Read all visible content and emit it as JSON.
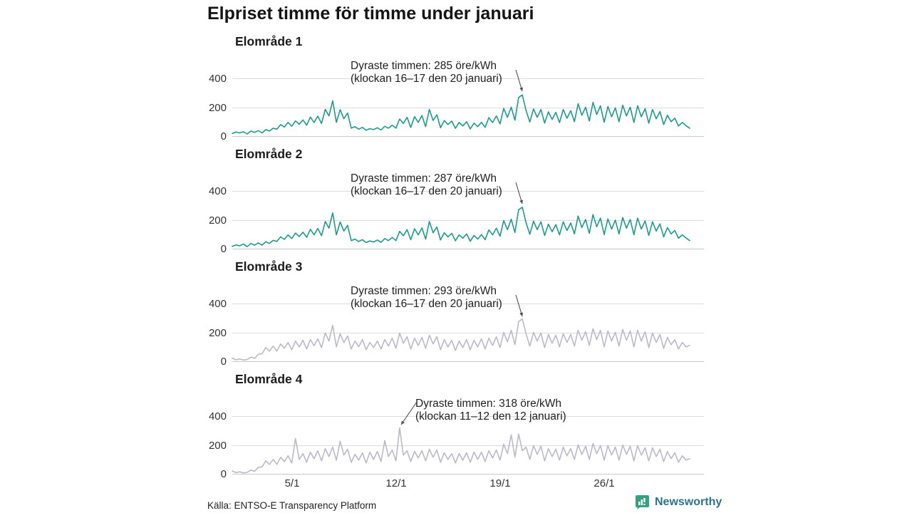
{
  "title": "Elpriset timme för timme under januari",
  "source": "Källa: ENTSO-E Transparency Platform",
  "branding": {
    "name": "Newsworthy",
    "icon_color": "#35a17f",
    "text_color": "#2e7389"
  },
  "colors": {
    "teal_line": "#1d9a8c",
    "gray_line": "#b9bac6",
    "grid": "#dcdcdc",
    "arrow": "#4d4d4d"
  },
  "chart_data": {
    "type": "line",
    "title": "Elpriset timme för timme under januari",
    "unit": "öre/kWh",
    "xlabel": "",
    "ylabel": "öre/kWh",
    "ylim": [
      0,
      460
    ],
    "y_tick_labels": [
      "400",
      "200",
      "0"
    ],
    "y_ticks": [
      400,
      200,
      0
    ],
    "x_tick_labels": [
      "5/1",
      "12/1",
      "19/1",
      "26/1"
    ],
    "x_tick_days": [
      5,
      12,
      19,
      26
    ],
    "days": 31,
    "samples_per_day": 4,
    "grid": true,
    "legend_position": "none",
    "charts": [
      {
        "title": "Elområde 1",
        "line_color": "#1d9a8c",
        "annotation": {
          "line1": "Dyraste timmen: 285 öre/kWh",
          "line2": "(klockan 16–17 den 20 januari)",
          "peak_value": 285,
          "peak_time": "klockan 16–17 den 20 januari",
          "arrow": "down-right"
        },
        "values": [
          18,
          28,
          22,
          30,
          15,
          35,
          25,
          38,
          22,
          45,
          35,
          55,
          48,
          80,
          62,
          95,
          68,
          105,
          82,
          112,
          75,
          132,
          95,
          138,
          88,
          185,
          140,
          245,
          95,
          183,
          120,
          160,
          55,
          65,
          48,
          60,
          40,
          52,
          45,
          58,
          42,
          68,
          55,
          75,
          55,
          118,
          88,
          130,
          60,
          135,
          95,
          142,
          65,
          185,
          108,
          148,
          58,
          108,
          80,
          104,
          54,
          95,
          70,
          100,
          50,
          90,
          65,
          96,
          60,
          128,
          94,
          140,
          85,
          192,
          130,
          200,
          110,
          268,
          285,
          178,
          98,
          188,
          130,
          184,
          90,
          168,
          115,
          165,
          94,
          184,
          124,
          176,
          100,
          224,
          144,
          200,
          104,
          234,
          150,
          210,
          96,
          205,
          134,
          196,
          100,
          214,
          140,
          200,
          95,
          210,
          134,
          190,
          90,
          184,
          120,
          170,
          80,
          144,
          100,
          124,
          70,
          95,
          72,
          55
        ]
      },
      {
        "title": "Elområde 2",
        "line_color": "#1d9a8c",
        "annotation": {
          "line1": "Dyraste timmen: 287 öre/kWh",
          "line2": "(klockan 16–17 den 20 januari)",
          "peak_value": 287,
          "peak_time": "klockan 16–17 den 20 januari",
          "arrow": "down-right"
        },
        "values": [
          16,
          26,
          20,
          32,
          14,
          36,
          24,
          40,
          24,
          48,
          36,
          58,
          50,
          82,
          64,
          96,
          70,
          108,
          84,
          114,
          78,
          134,
          96,
          140,
          90,
          188,
          142,
          248,
          96,
          185,
          122,
          162,
          56,
          66,
          50,
          62,
          42,
          54,
          46,
          60,
          44,
          70,
          56,
          78,
          56,
          120,
          90,
          132,
          62,
          138,
          96,
          144,
          66,
          188,
          110,
          150,
          60,
          110,
          82,
          106,
          55,
          96,
          72,
          102,
          52,
          92,
          66,
          98,
          62,
          130,
          96,
          142,
          86,
          195,
          132,
          204,
          112,
          270,
          287,
          180,
          100,
          190,
          132,
          186,
          92,
          170,
          117,
          167,
          96,
          186,
          126,
          178,
          102,
          226,
          146,
          202,
          106,
          236,
          152,
          212,
          98,
          207,
          136,
          198,
          102,
          216,
          142,
          202,
          97,
          212,
          136,
          192,
          92,
          186,
          122,
          172,
          82,
          146,
          102,
          126,
          72,
          96,
          74,
          56
        ]
      },
      {
        "title": "Elområde 3",
        "line_color": "#b9bac6",
        "annotation": {
          "line1": "Dyraste timmen: 293 öre/kWh",
          "line2": "(klockan 16–17 den 20 januari)",
          "peak_value": 293,
          "peak_time": "klockan 16–17 den 20 januari",
          "arrow": "down-right"
        },
        "values": [
          22,
          10,
          16,
          8,
          12,
          28,
          20,
          48,
          52,
          95,
          70,
          105,
          70,
          120,
          90,
          130,
          80,
          140,
          100,
          145,
          85,
          150,
          108,
          155,
          95,
          195,
          140,
          250,
          100,
          190,
          130,
          175,
          85,
          140,
          100,
          150,
          80,
          130,
          95,
          140,
          85,
          150,
          105,
          160,
          90,
          195,
          125,
          170,
          85,
          160,
          110,
          165,
          90,
          180,
          120,
          170,
          80,
          150,
          100,
          145,
          75,
          140,
          95,
          150,
          80,
          145,
          100,
          155,
          85,
          160,
          110,
          170,
          95,
          200,
          135,
          215,
          115,
          275,
          293,
          190,
          105,
          200,
          140,
          195,
          95,
          185,
          125,
          180,
          100,
          190,
          130,
          185,
          105,
          215,
          145,
          205,
          110,
          225,
          150,
          215,
          100,
          210,
          140,
          200,
          105,
          220,
          145,
          210,
          100,
          215,
          140,
          205,
          95,
          195,
          130,
          185,
          90,
          165,
          115,
          150,
          85,
          130,
          100,
          110
        ]
      },
      {
        "title": "Elområde 4",
        "line_color": "#b9bac6",
        "annotation": {
          "line1": "Dyraste timmen: 318 öre/kWh",
          "line2": "(klockan 11–12 den 12 januari)",
          "peak_value": 318,
          "peak_time": "klockan 11–12 den 12 januari",
          "arrow": "down-left"
        },
        "values": [
          20,
          8,
          14,
          6,
          10,
          26,
          18,
          45,
          48,
          90,
          65,
          100,
          65,
          115,
          85,
          125,
          75,
          245,
          100,
          140,
          80,
          150,
          105,
          160,
          90,
          175,
          120,
          185,
          95,
          225,
          130,
          170,
          80,
          135,
          95,
          145,
          75,
          150,
          100,
          155,
          85,
          230,
          120,
          165,
          90,
          318,
          130,
          160,
          85,
          155,
          110,
          160,
          90,
          170,
          115,
          165,
          80,
          145,
          100,
          140,
          75,
          140,
          95,
          145,
          80,
          150,
          100,
          150,
          85,
          160,
          110,
          165,
          95,
          205,
          140,
          270,
          115,
          275,
          160,
          185,
          100,
          195,
          135,
          190,
          90,
          175,
          120,
          170,
          95,
          185,
          125,
          175,
          100,
          200,
          135,
          190,
          100,
          210,
          140,
          195,
          95,
          195,
          130,
          185,
          95,
          200,
          135,
          190,
          90,
          195,
          130,
          180,
          90,
          180,
          120,
          170,
          85,
          155,
          105,
          145,
          80,
          125,
          95,
          105
        ]
      }
    ]
  }
}
